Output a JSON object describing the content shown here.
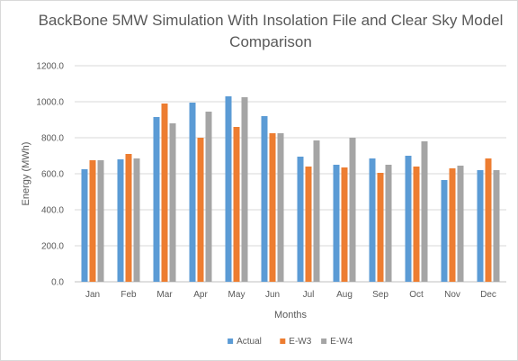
{
  "chart_data": {
    "type": "bar",
    "title": "BackBone 5MW Simulation With Insolation File and Clear Sky Model Comparison",
    "xlabel": "Months",
    "ylabel": "Energy (MWh)",
    "ylim": [
      0,
      1200
    ],
    "yticks": [
      "0.0",
      "200.0",
      "400.0",
      "600.0",
      "800.0",
      "1000.0",
      "1200.0"
    ],
    "grid": true,
    "legend_position": "bottom",
    "categories": [
      "Jan",
      "Feb",
      "Mar",
      "Apr",
      "May",
      "Jun",
      "Jul",
      "Aug",
      "Sep",
      "Oct",
      "Nov",
      "Dec"
    ],
    "series": [
      {
        "name": "Actual",
        "color": "#5b9bd5",
        "values": [
          625,
          680,
          915,
          995,
          1030,
          920,
          695,
          650,
          685,
          700,
          565,
          620
        ]
      },
      {
        "name": "E-W3",
        "color": "#ed7d31",
        "values": [
          675,
          710,
          990,
          800,
          860,
          825,
          640,
          635,
          605,
          640,
          630,
          685
        ]
      },
      {
        "name": "E-W4",
        "color": "#a5a5a5",
        "values": [
          675,
          685,
          880,
          945,
          1025,
          825,
          785,
          800,
          650,
          780,
          645,
          620
        ]
      }
    ]
  }
}
